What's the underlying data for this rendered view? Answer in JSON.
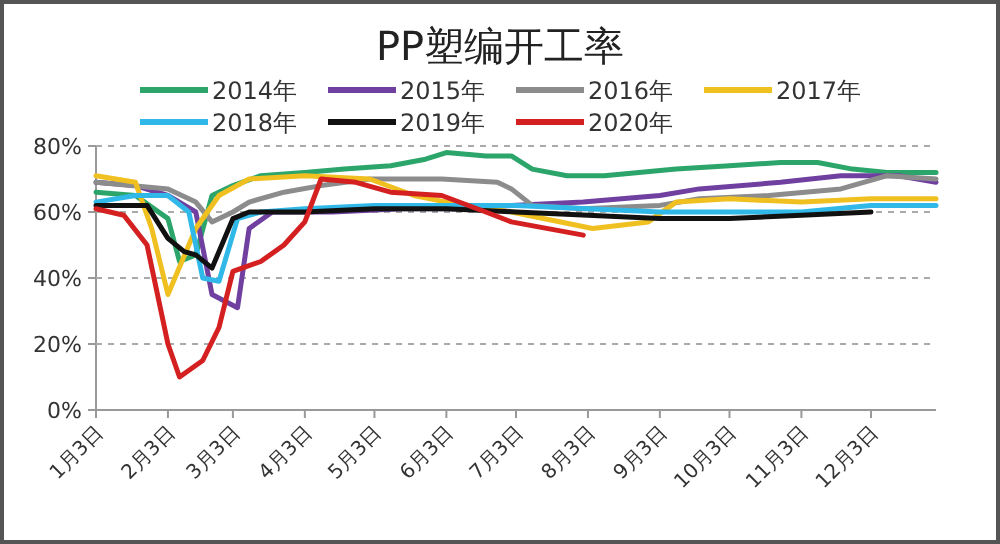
{
  "chart_data": {
    "type": "line",
    "title": "PP塑编开工率",
    "legend": "top",
    "grid": "y",
    "line_style": "solid",
    "marker": "none",
    "xlim": [
      "--01-03",
      "--12-31"
    ],
    "xticks": [
      {
        "value": "--01-03",
        "label": "1月3日"
      },
      {
        "value": "--02-03",
        "label": "2月3日"
      },
      {
        "value": "--03-03",
        "label": "3月3日"
      },
      {
        "value": "--04-03",
        "label": "4月3日"
      },
      {
        "value": "--05-03",
        "label": "5月3日"
      },
      {
        "value": "--06-03",
        "label": "6月3日"
      },
      {
        "value": "--07-03",
        "label": "7月3日"
      },
      {
        "value": "--08-03",
        "label": "8月3日"
      },
      {
        "value": "--09-03",
        "label": "9月3日"
      },
      {
        "value": "--10-03",
        "label": "10月3日"
      },
      {
        "value": "--11-03",
        "label": "11月3日"
      },
      {
        "value": "--12-03",
        "label": "12月3日"
      }
    ],
    "ylim": [
      0,
      80
    ],
    "yticks": [
      {
        "value": 0,
        "label": "0%"
      },
      {
        "value": 20,
        "label": "20%"
      },
      {
        "value": 40,
        "label": "40%"
      },
      {
        "value": 60,
        "label": "60%"
      },
      {
        "value": 80,
        "label": "80%"
      }
    ],
    "series": [
      {
        "name": "2014年",
        "color": "#2ca56b",
        "x": [
          "--01-03",
          "--01-20",
          "--02-03",
          "--02-08",
          "--02-15",
          "--02-22",
          "--03-03",
          "--03-15",
          "--04-03",
          "--04-20",
          "--05-10",
          "--05-25",
          "--06-03",
          "--06-20",
          "--07-01",
          "--07-10",
          "--07-25",
          "--08-10",
          "--08-25",
          "--09-10",
          "--10-03",
          "--10-25",
          "--11-10",
          "--11-25",
          "--12-10",
          "--12-31"
        ],
        "values": [
          66,
          65,
          58,
          45,
          47,
          65,
          68,
          71,
          72,
          73,
          74,
          76,
          78,
          77,
          77,
          73,
          71,
          71,
          72,
          73,
          74,
          75,
          75,
          73,
          72,
          72
        ]
      },
      {
        "name": "2015年",
        "color": "#7040a0",
        "x": [
          "--01-03",
          "--01-20",
          "--02-03",
          "--02-15",
          "--02-22",
          "--03-05",
          "--03-10",
          "--03-20",
          "--04-15",
          "--05-15",
          "--06-15",
          "--07-01",
          "--08-01",
          "--09-03",
          "--09-20",
          "--10-25",
          "--11-20",
          "--12-15",
          "--12-31"
        ],
        "values": [
          69,
          68,
          65,
          60,
          35,
          31,
          55,
          60,
          60,
          61,
          61,
          62,
          63,
          65,
          67,
          69,
          71,
          71,
          69
        ]
      },
      {
        "name": "2016年",
        "color": "#8c8c8c",
        "x": [
          "--01-03",
          "--02-03",
          "--02-15",
          "--02-22",
          "--03-03",
          "--03-10",
          "--03-25",
          "--04-10",
          "--05-01",
          "--06-01",
          "--06-25",
          "--07-01",
          "--07-10",
          "--08-01",
          "--09-03",
          "--09-20",
          "--10-20",
          "--11-20",
          "--12-10",
          "--12-31"
        ],
        "values": [
          69,
          67,
          63,
          57,
          60,
          63,
          66,
          68,
          70,
          70,
          69,
          67,
          62,
          61,
          62,
          64,
          65,
          67,
          71,
          70
        ]
      },
      {
        "name": "2017年",
        "color": "#f0c020",
        "x": [
          "--01-03",
          "--01-20",
          "--01-27",
          "--02-03",
          "--02-15",
          "--02-25",
          "--03-10",
          "--04-03",
          "--05-01",
          "--05-20",
          "--06-03",
          "--07-01",
          "--08-05",
          "--08-29",
          "--09-10",
          "--10-03",
          "--11-03",
          "--12-03",
          "--12-31"
        ],
        "values": [
          71,
          69,
          55,
          35,
          55,
          65,
          70,
          71,
          70,
          65,
          63,
          60,
          55,
          57,
          63,
          64,
          63,
          64,
          64
        ]
      },
      {
        "name": "2018年",
        "color": "#30b8e8",
        "x": [
          "--01-03",
          "--01-20",
          "--02-03",
          "--02-12",
          "--02-18",
          "--02-25",
          "--03-05",
          "--03-15",
          "--04-03",
          "--05-03",
          "--06-03",
          "--07-03",
          "--08-03",
          "--09-03",
          "--10-03",
          "--11-03",
          "--12-03",
          "--12-31"
        ],
        "values": [
          63,
          65,
          65,
          60,
          40,
          39,
          58,
          60,
          61,
          62,
          62,
          62,
          61,
          60,
          60,
          60,
          62,
          62
        ]
      },
      {
        "name": "2019年",
        "color": "#111111",
        "x": [
          "--01-03",
          "--01-25",
          "--02-03",
          "--02-10",
          "--02-15",
          "--02-22",
          "--03-03",
          "--03-10",
          "--04-03",
          "--05-03",
          "--06-03",
          "--07-03",
          "--08-03",
          "--09-03",
          "--10-03",
          "--11-03",
          "--12-03"
        ],
        "values": [
          62,
          62,
          52,
          48,
          47,
          43,
          58,
          60,
          60,
          61,
          61,
          60,
          59,
          58,
          58,
          59,
          60
        ]
      },
      {
        "name": "2020年",
        "color": "#d42020",
        "x": [
          "--01-03",
          "--01-15",
          "--01-25",
          "--02-03",
          "--02-08",
          "--02-18",
          "--02-25",
          "--03-03",
          "--03-15",
          "--03-25",
          "--04-03",
          "--04-10",
          "--04-25",
          "--05-10",
          "--06-01",
          "--06-20",
          "--07-01",
          "--08-01"
        ],
        "values": [
          61,
          59,
          50,
          20,
          10,
          15,
          25,
          42,
          45,
          50,
          57,
          70,
          69,
          66,
          65,
          60,
          57,
          53
        ]
      }
    ]
  }
}
